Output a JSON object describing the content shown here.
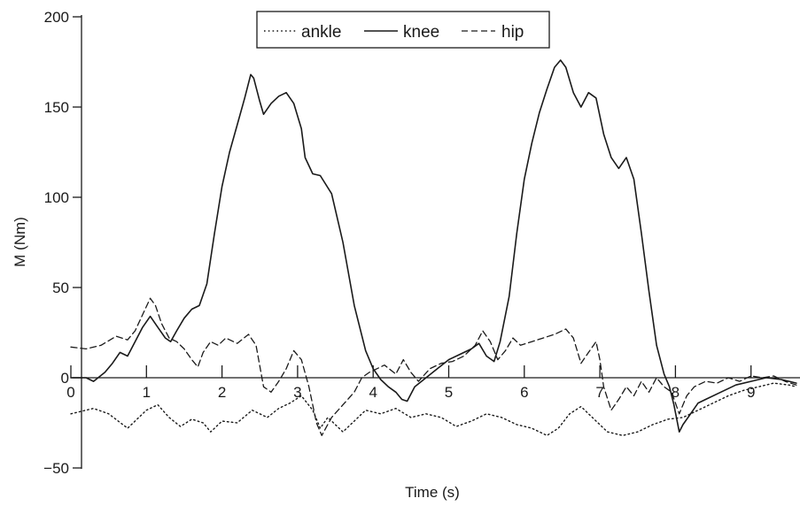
{
  "chart_data": {
    "type": "line",
    "title": "",
    "xlabel": "Time (s)",
    "ylabel": "M (Nm)",
    "xlim": [
      0,
      9.6
    ],
    "ylim": [
      -50,
      200
    ],
    "x_ticks": [
      0,
      1,
      2,
      3,
      4,
      5,
      6,
      7,
      8,
      9
    ],
    "x_tick_labels": [
      "0",
      "1",
      "2",
      "3",
      "4",
      "5",
      "6",
      "7",
      "8",
      "9"
    ],
    "y_ticks": [
      -50,
      0,
      50,
      100,
      150,
      200
    ],
    "y_tick_labels": [
      "−50",
      "0",
      "50",
      "100",
      "150",
      "200"
    ],
    "grid": false,
    "legend_position": "top-center",
    "legend": [
      "ankle",
      "knee",
      "hip"
    ],
    "series": [
      {
        "name": "ankle",
        "style": "dotted",
        "color": "#1a1a1a",
        "points": [
          [
            0,
            -20
          ],
          [
            0.3,
            -17
          ],
          [
            0.5,
            -20
          ],
          [
            0.75,
            -28
          ],
          [
            1.0,
            -18
          ],
          [
            1.15,
            -15
          ],
          [
            1.3,
            -22
          ],
          [
            1.45,
            -27
          ],
          [
            1.6,
            -23
          ],
          [
            1.75,
            -25
          ],
          [
            1.85,
            -30
          ],
          [
            2.0,
            -24
          ],
          [
            2.2,
            -25
          ],
          [
            2.4,
            -18
          ],
          [
            2.6,
            -22
          ],
          [
            2.75,
            -17
          ],
          [
            2.9,
            -14
          ],
          [
            3.05,
            -10
          ],
          [
            3.2,
            -18
          ],
          [
            3.3,
            -28
          ],
          [
            3.4,
            -22
          ],
          [
            3.6,
            -30
          ],
          [
            3.75,
            -24
          ],
          [
            3.9,
            -18
          ],
          [
            4.1,
            -20
          ],
          [
            4.3,
            -17
          ],
          [
            4.5,
            -22
          ],
          [
            4.7,
            -20
          ],
          [
            4.9,
            -22
          ],
          [
            5.1,
            -27
          ],
          [
            5.3,
            -24
          ],
          [
            5.5,
            -20
          ],
          [
            5.7,
            -22
          ],
          [
            5.9,
            -26
          ],
          [
            6.1,
            -28
          ],
          [
            6.3,
            -32
          ],
          [
            6.45,
            -28
          ],
          [
            6.6,
            -20
          ],
          [
            6.75,
            -16
          ],
          [
            6.9,
            -22
          ],
          [
            7.1,
            -30
          ],
          [
            7.3,
            -32
          ],
          [
            7.5,
            -30
          ],
          [
            7.7,
            -26
          ],
          [
            7.9,
            -23
          ],
          [
            8.1,
            -22
          ],
          [
            8.3,
            -18
          ],
          [
            8.5,
            -14
          ],
          [
            8.7,
            -10
          ],
          [
            8.9,
            -7
          ],
          [
            9.1,
            -5
          ],
          [
            9.3,
            -3
          ],
          [
            9.5,
            -4
          ],
          [
            9.6,
            -5
          ]
        ]
      },
      {
        "name": "knee",
        "style": "solid",
        "color": "#1a1a1a",
        "points": [
          [
            0,
            0
          ],
          [
            0.2,
            0
          ],
          [
            0.3,
            -2
          ],
          [
            0.45,
            3
          ],
          [
            0.55,
            8
          ],
          [
            0.65,
            14
          ],
          [
            0.75,
            12
          ],
          [
            0.85,
            20
          ],
          [
            0.95,
            28
          ],
          [
            1.05,
            34
          ],
          [
            1.15,
            28
          ],
          [
            1.25,
            22
          ],
          [
            1.32,
            20
          ],
          [
            1.4,
            26
          ],
          [
            1.5,
            33
          ],
          [
            1.6,
            38
          ],
          [
            1.7,
            40
          ],
          [
            1.8,
            52
          ],
          [
            1.9,
            80
          ],
          [
            2.0,
            106
          ],
          [
            2.1,
            125
          ],
          [
            2.2,
            140
          ],
          [
            2.3,
            155
          ],
          [
            2.38,
            168
          ],
          [
            2.42,
            166
          ],
          [
            2.5,
            153
          ],
          [
            2.55,
            146
          ],
          [
            2.65,
            152
          ],
          [
            2.75,
            156
          ],
          [
            2.85,
            158
          ],
          [
            2.95,
            152
          ],
          [
            3.05,
            138
          ],
          [
            3.1,
            122
          ],
          [
            3.2,
            113
          ],
          [
            3.3,
            112
          ],
          [
            3.45,
            102
          ],
          [
            3.6,
            75
          ],
          [
            3.75,
            40
          ],
          [
            3.9,
            15
          ],
          [
            4.0,
            5
          ],
          [
            4.1,
            -1
          ],
          [
            4.2,
            -5
          ],
          [
            4.3,
            -8
          ],
          [
            4.38,
            -12
          ],
          [
            4.45,
            -13
          ],
          [
            4.55,
            -5
          ],
          [
            4.7,
            0
          ],
          [
            4.85,
            5
          ],
          [
            5.0,
            10
          ],
          [
            5.15,
            13
          ],
          [
            5.3,
            16
          ],
          [
            5.4,
            19
          ],
          [
            5.5,
            12
          ],
          [
            5.6,
            9
          ],
          [
            5.68,
            20
          ],
          [
            5.8,
            45
          ],
          [
            5.9,
            80
          ],
          [
            6.0,
            110
          ],
          [
            6.1,
            130
          ],
          [
            6.2,
            147
          ],
          [
            6.3,
            160
          ],
          [
            6.4,
            172
          ],
          [
            6.48,
            176
          ],
          [
            6.55,
            172
          ],
          [
            6.65,
            158
          ],
          [
            6.75,
            150
          ],
          [
            6.85,
            158
          ],
          [
            6.95,
            155
          ],
          [
            7.05,
            135
          ],
          [
            7.15,
            122
          ],
          [
            7.25,
            116
          ],
          [
            7.35,
            122
          ],
          [
            7.45,
            110
          ],
          [
            7.55,
            80
          ],
          [
            7.65,
            48
          ],
          [
            7.75,
            18
          ],
          [
            7.85,
            2
          ],
          [
            7.92,
            -5
          ],
          [
            7.98,
            -15
          ],
          [
            8.05,
            -30
          ],
          [
            8.1,
            -26
          ],
          [
            8.2,
            -20
          ],
          [
            8.3,
            -14
          ],
          [
            8.4,
            -12
          ],
          [
            8.6,
            -8
          ],
          [
            8.8,
            -4
          ],
          [
            9.0,
            -2
          ],
          [
            9.2,
            0
          ],
          [
            9.4,
            -1
          ],
          [
            9.6,
            -3
          ]
        ]
      },
      {
        "name": "hip",
        "style": "dashed",
        "color": "#1a1a1a",
        "points": [
          [
            0,
            17
          ],
          [
            0.2,
            16
          ],
          [
            0.4,
            18
          ],
          [
            0.6,
            23
          ],
          [
            0.75,
            21
          ],
          [
            0.85,
            26
          ],
          [
            0.95,
            35
          ],
          [
            1.05,
            44
          ],
          [
            1.12,
            40
          ],
          [
            1.2,
            30
          ],
          [
            1.3,
            22
          ],
          [
            1.4,
            20
          ],
          [
            1.5,
            16
          ],
          [
            1.6,
            10
          ],
          [
            1.68,
            6
          ],
          [
            1.75,
            14
          ],
          [
            1.85,
            20
          ],
          [
            1.95,
            18
          ],
          [
            2.05,
            22
          ],
          [
            2.2,
            19
          ],
          [
            2.35,
            24
          ],
          [
            2.45,
            18
          ],
          [
            2.55,
            -5
          ],
          [
            2.65,
            -8
          ],
          [
            2.75,
            -2
          ],
          [
            2.85,
            5
          ],
          [
            2.95,
            15
          ],
          [
            3.05,
            10
          ],
          [
            3.15,
            -5
          ],
          [
            3.25,
            -25
          ],
          [
            3.32,
            -32
          ],
          [
            3.45,
            -22
          ],
          [
            3.6,
            -15
          ],
          [
            3.75,
            -8
          ],
          [
            3.85,
            0
          ],
          [
            3.95,
            3
          ],
          [
            4.05,
            5
          ],
          [
            4.15,
            7
          ],
          [
            4.3,
            2
          ],
          [
            4.4,
            10
          ],
          [
            4.5,
            3
          ],
          [
            4.6,
            -2
          ],
          [
            4.75,
            5
          ],
          [
            4.9,
            8
          ],
          [
            5.05,
            9
          ],
          [
            5.2,
            12
          ],
          [
            5.35,
            18
          ],
          [
            5.45,
            26
          ],
          [
            5.55,
            20
          ],
          [
            5.65,
            10
          ],
          [
            5.75,
            15
          ],
          [
            5.85,
            22
          ],
          [
            5.95,
            18
          ],
          [
            6.1,
            20
          ],
          [
            6.25,
            22
          ],
          [
            6.4,
            24
          ],
          [
            6.55,
            27
          ],
          [
            6.65,
            22
          ],
          [
            6.75,
            8
          ],
          [
            6.85,
            14
          ],
          [
            6.95,
            20
          ],
          [
            7.0,
            10
          ],
          [
            7.05,
            -5
          ],
          [
            7.15,
            -18
          ],
          [
            7.25,
            -12
          ],
          [
            7.35,
            -5
          ],
          [
            7.45,
            -10
          ],
          [
            7.55,
            -2
          ],
          [
            7.65,
            -8
          ],
          [
            7.75,
            0
          ],
          [
            7.85,
            -5
          ],
          [
            7.95,
            -8
          ],
          [
            8.05,
            -20
          ],
          [
            8.15,
            -10
          ],
          [
            8.25,
            -5
          ],
          [
            8.4,
            -2
          ],
          [
            8.55,
            -3
          ],
          [
            8.7,
            0
          ],
          [
            8.85,
            -2
          ],
          [
            9.0,
            1
          ],
          [
            9.15,
            0
          ],
          [
            9.3,
            1
          ],
          [
            9.45,
            -2
          ],
          [
            9.6,
            -4
          ]
        ]
      }
    ]
  }
}
